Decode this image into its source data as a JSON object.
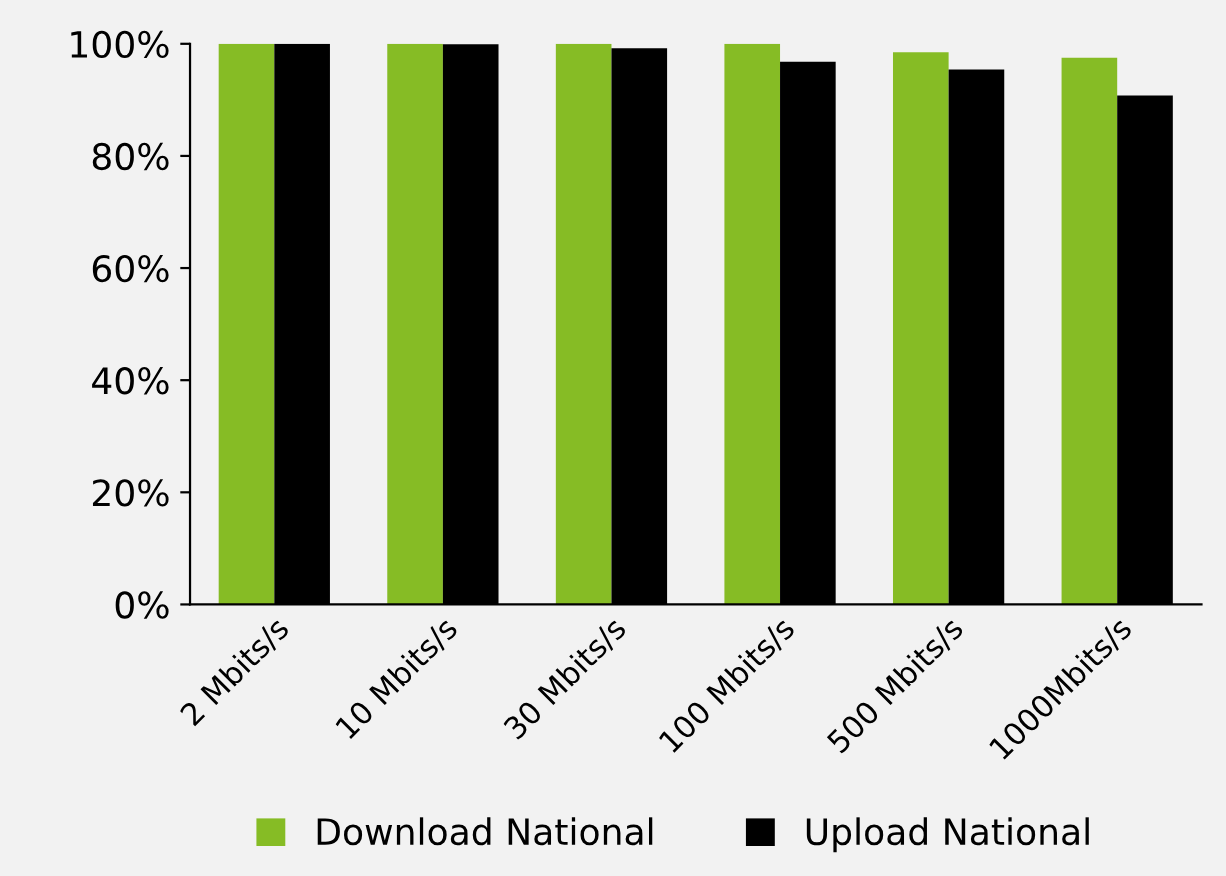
{
  "chart_data": {
    "type": "bar",
    "categories": [
      "2 Mbits/s",
      "10 Mbits/s",
      "30 Mbits/s",
      "100 Mbits/s",
      "500 Mbits/s",
      "1000Mbits/s"
    ],
    "series": [
      {
        "name": "Download National",
        "color": "#86bc25",
        "values": [
          100,
          100,
          100,
          100,
          98.5,
          97.5
        ]
      },
      {
        "name": "Upload National",
        "color": "#000000",
        "values": [
          100,
          99.9,
          99.2,
          96.8,
          95.4,
          90.8
        ]
      }
    ],
    "ylim": [
      0,
      100
    ],
    "yticks": [
      {
        "value": 0,
        "label": "0%"
      },
      {
        "value": 20,
        "label": "20%"
      },
      {
        "value": 40,
        "label": "40%"
      },
      {
        "value": 60,
        "label": "60%"
      },
      {
        "value": 80,
        "label": "80%"
      },
      {
        "value": 100,
        "label": "100%"
      }
    ],
    "legend": "bottom"
  }
}
